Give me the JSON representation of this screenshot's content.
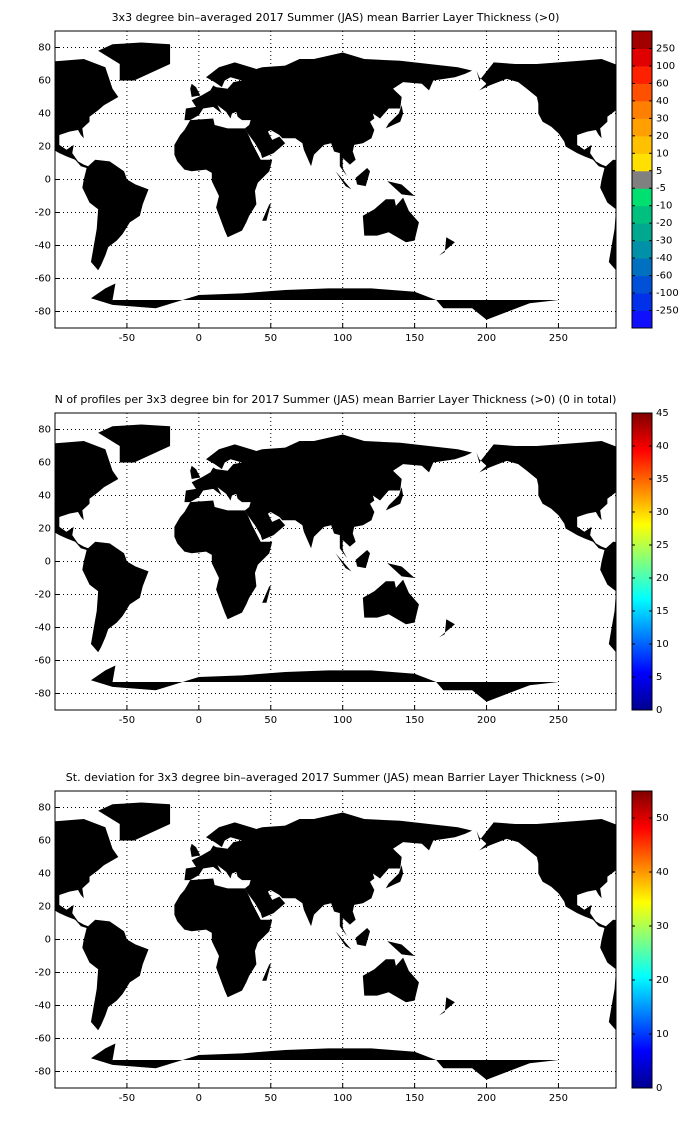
{
  "maps": [
    {
      "title": "3x3 degree bin–averaged 2017 Summer (JAS) mean Barrier Layer Thickness (>0)",
      "xlim": [
        -100,
        290
      ],
      "ylim": [
        -90,
        90
      ],
      "xticks": [
        -50,
        0,
        50,
        100,
        150,
        200,
        250
      ],
      "yticks": [
        -80,
        -60,
        -40,
        -20,
        0,
        20,
        40,
        60,
        80
      ],
      "grid": true,
      "colorbar": {
        "type": "discrete",
        "ticks": [
          -250,
          -100,
          -60,
          -40,
          -30,
          -20,
          -10,
          -5,
          5,
          10,
          20,
          30,
          40,
          60,
          100,
          250
        ],
        "colors": [
          "#1010ff",
          "#0030e8",
          "#0050d8",
          "#0070c0",
          "#0090a8",
          "#00a890",
          "#00c080",
          "#00e070",
          "#808080",
          "#ffe000",
          "#ffc000",
          "#ffa000",
          "#ff8000",
          "#ff5000",
          "#ff2000",
          "#e00000",
          "#a00000"
        ]
      }
    },
    {
      "title": "N of profiles per 3x3 degree bin for 2017 Summer (JAS) mean Barrier Layer Thickness (>0) (0 in total)",
      "xlim": [
        -100,
        290
      ],
      "ylim": [
        -90,
        90
      ],
      "xticks": [
        -50,
        0,
        50,
        100,
        150,
        200,
        250
      ],
      "yticks": [
        -80,
        -60,
        -40,
        -20,
        0,
        20,
        40,
        60,
        80
      ],
      "grid": true,
      "colorbar": {
        "type": "continuous",
        "colormap": "jet",
        "lim": [
          0,
          45
        ],
        "ticks": [
          0,
          5,
          10,
          15,
          20,
          25,
          30,
          35,
          40,
          45
        ]
      }
    },
    {
      "title": "St. deviation for 3x3 degree bin–averaged 2017 Summer (JAS) mean Barrier Layer Thickness (>0)",
      "xlim": [
        -100,
        290
      ],
      "ylim": [
        -90,
        90
      ],
      "xticks": [
        -50,
        0,
        50,
        100,
        150,
        200,
        250
      ],
      "yticks": [
        -80,
        -60,
        -40,
        -20,
        0,
        20,
        40,
        60,
        80
      ],
      "grid": true,
      "colorbar": {
        "type": "continuous",
        "colormap": "jet",
        "lim": [
          0,
          55
        ],
        "ticks": [
          0,
          10,
          20,
          30,
          40,
          50
        ]
      }
    }
  ]
}
